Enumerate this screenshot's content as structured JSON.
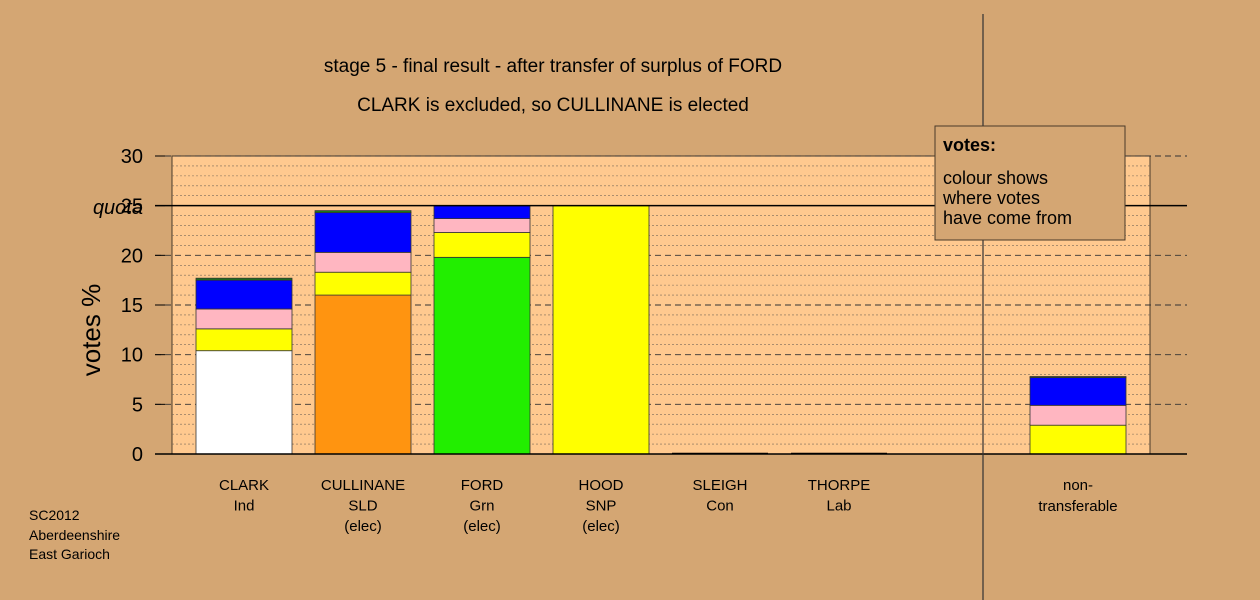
{
  "chart_data": {
    "type": "bar",
    "title": "stage 5 - final result - after transfer of surplus of FORD",
    "subtitle": "CLARK is excluded, so CULLINANE is elected",
    "ylabel": "votes %",
    "ylim": [
      0,
      30
    ],
    "yticks": [
      0,
      5,
      10,
      15,
      20,
      25,
      30
    ],
    "quota": 25,
    "quota_label": "quota",
    "grid": true,
    "legend": {
      "title": "votes:",
      "lines": [
        "colour shows",
        "where votes",
        "have come from"
      ],
      "placement": "top-right"
    },
    "candidates": [
      {
        "name": "CLARK",
        "party": "Ind",
        "status": "",
        "segments": [
          {
            "value": 10.4,
            "color": "#ffffff"
          },
          {
            "value": 2.2,
            "color": "#ffff00"
          },
          {
            "value": 2.0,
            "color": "#ffb6c1"
          },
          {
            "value": 2.9,
            "color": "#0000ff"
          },
          {
            "value": 0.2,
            "color": "#1a7a1a"
          }
        ]
      },
      {
        "name": "CULLINANE",
        "party": "SLD",
        "status": "(elec)",
        "segments": [
          {
            "value": 16.0,
            "color": "#ff9410"
          },
          {
            "value": 2.3,
            "color": "#ffff00"
          },
          {
            "value": 2.0,
            "color": "#ffb6c1"
          },
          {
            "value": 4.0,
            "color": "#0000ff"
          },
          {
            "value": 0.2,
            "color": "#1a7a1a"
          }
        ]
      },
      {
        "name": "FORD",
        "party": "Grn",
        "status": "(elec)",
        "segments": [
          {
            "value": 19.8,
            "color": "#22ee00"
          },
          {
            "value": 2.5,
            "color": "#ffff00"
          },
          {
            "value": 1.4,
            "color": "#ffb6c1"
          },
          {
            "value": 1.3,
            "color": "#0000ff"
          }
        ]
      },
      {
        "name": "HOOD",
        "party": "SNP",
        "status": "(elec)",
        "segments": [
          {
            "value": 25.0,
            "color": "#ffff00"
          }
        ]
      },
      {
        "name": "SLEIGH",
        "party": "Con",
        "status": "",
        "segments": []
      },
      {
        "name": "THORPE",
        "party": "Lab",
        "status": "",
        "segments": []
      }
    ],
    "nontransferable": {
      "label_line1": "non-",
      "label_line2": "transferable",
      "segments": [
        {
          "value": 2.9,
          "color": "#ffff00"
        },
        {
          "value": 2.0,
          "color": "#ffb6c1"
        },
        {
          "value": 2.8,
          "color": "#0000ff"
        },
        {
          "value": 0.1,
          "color": "#1a7a1a"
        }
      ]
    }
  },
  "footer": {
    "line1": "SC2012",
    "line2": "Aberdeenshire",
    "line3": "East Garioch"
  }
}
